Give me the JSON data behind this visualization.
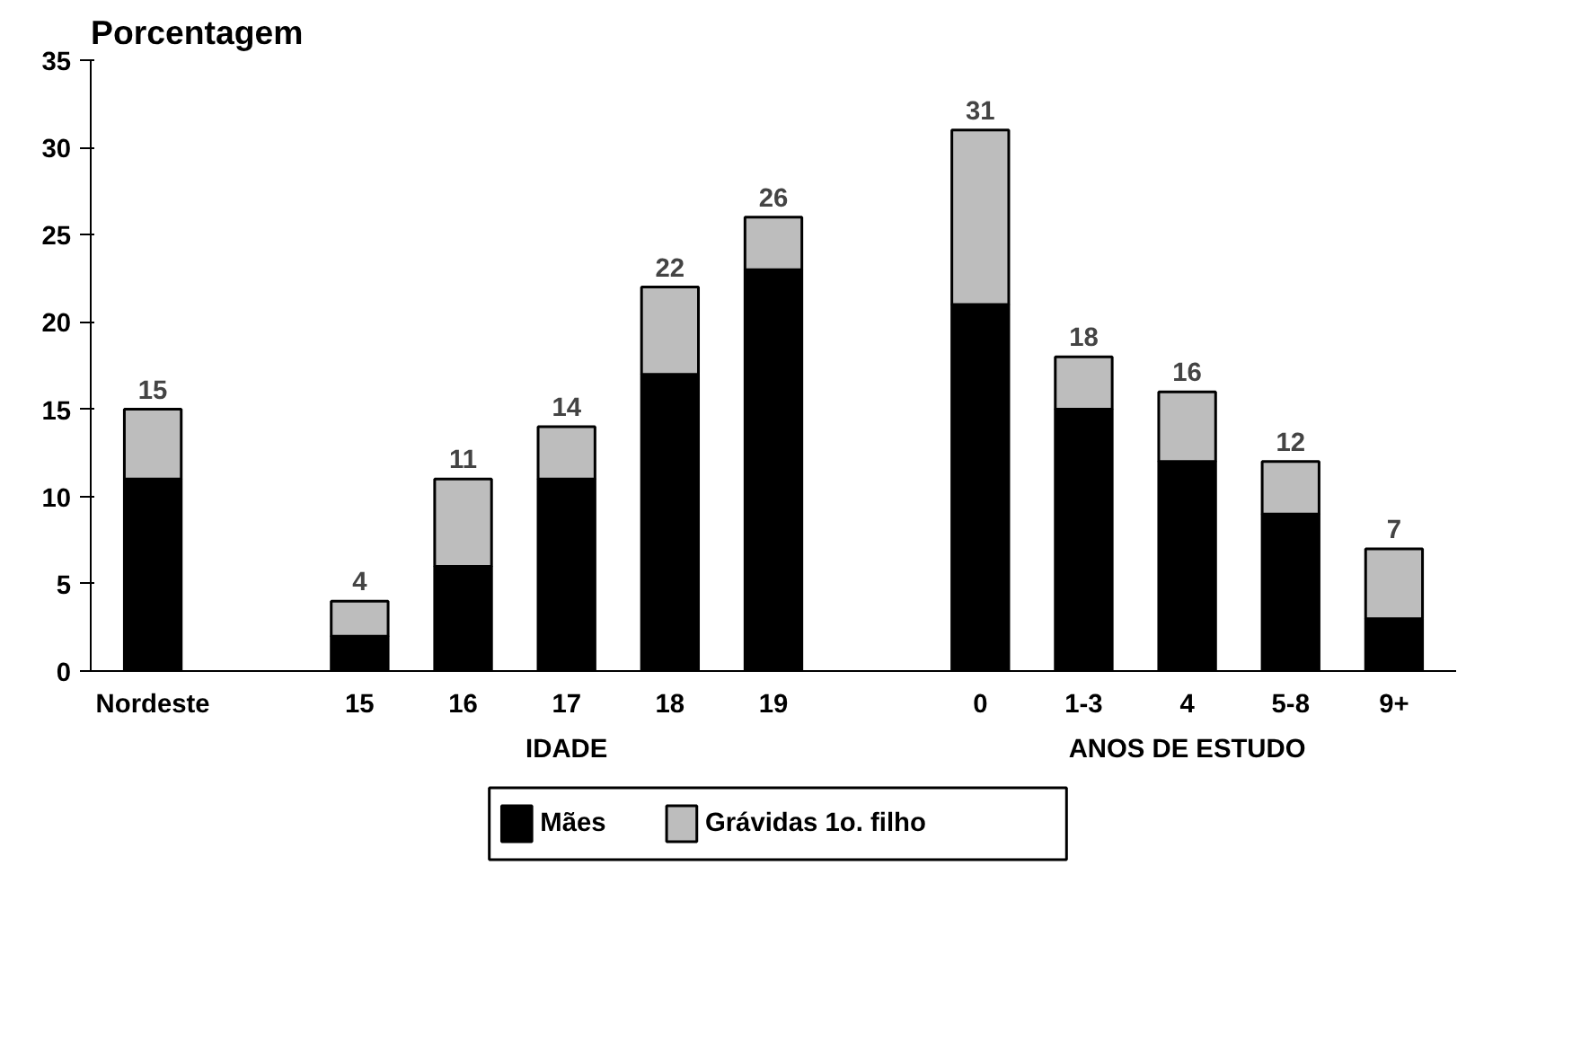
{
  "chart_data": {
    "type": "bar",
    "stacked": true,
    "ylabel": "Porcentagem",
    "categories": [
      "Nordeste",
      null,
      "15",
      "16",
      "17",
      "18",
      "19",
      null,
      "0",
      "1-3",
      "4",
      "5-8",
      "9+"
    ],
    "series": [
      {
        "name": "Mães",
        "color": "#000000",
        "values": [
          11,
          null,
          2,
          6,
          11,
          17,
          23,
          null,
          21,
          15,
          12,
          9,
          3
        ]
      },
      {
        "name": "Grávidas 1o. filho",
        "color": "#bdbdbd",
        "values": [
          4,
          null,
          2,
          5,
          3,
          5,
          3,
          null,
          10,
          3,
          4,
          3,
          4
        ]
      }
    ],
    "totals": [
      "15",
      null,
      "4",
      "11",
      "14",
      "22",
      "26",
      null,
      "31",
      "18",
      "16",
      "12",
      "7"
    ],
    "annotations": [
      "IDADE",
      "ANOS DE ESTUDO"
    ],
    "ylim": [
      0,
      35
    ],
    "yticks": [
      0,
      5,
      10,
      15,
      20,
      25,
      30,
      35
    ],
    "grid": false,
    "legend": "bottom"
  }
}
